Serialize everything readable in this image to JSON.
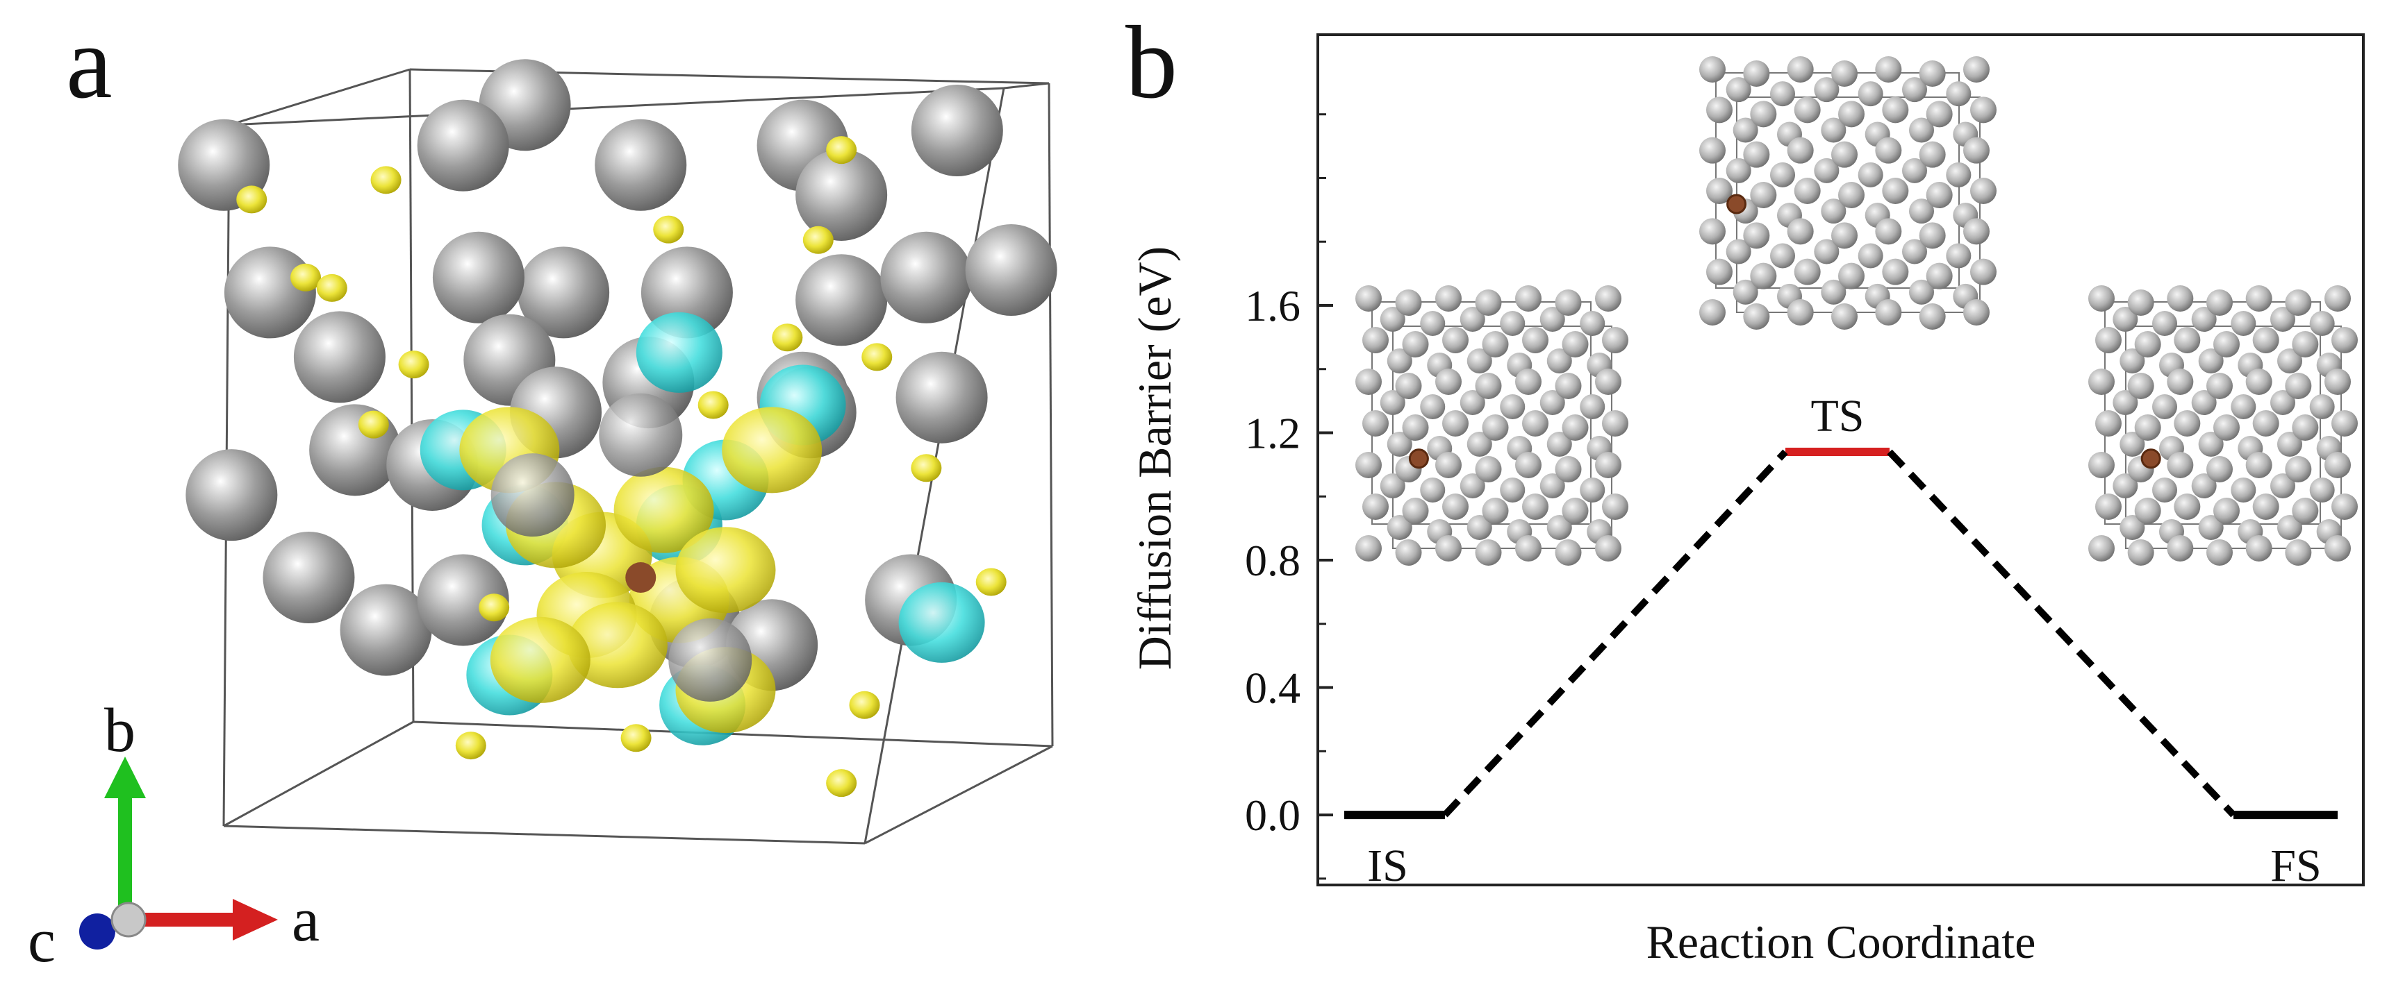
{
  "figure": {
    "panel_a_letter": "a",
    "panel_b_letter": "b",
    "axes_triad": {
      "b_label": "b",
      "a_label": "a",
      "c_label": "c",
      "b_color": "#1fc01f",
      "a_color": "#d42020",
      "c_color": "#1020a0"
    },
    "atom_colors": {
      "host_atom": "#9a9a9a",
      "isosurface_positive": "#e8e000",
      "isosurface_negative": "#30d8d8",
      "solute_atom": "#8a4a2a"
    }
  },
  "chart_data": {
    "type": "line",
    "title": "",
    "xlabel": "Reaction Coordinate",
    "ylabel": "Diffusion Barrier (eV)",
    "ylim": [
      -0.22,
      2.45
    ],
    "yticks": [
      "0.0",
      "0.4",
      "0.8",
      "1.2",
      "1.6"
    ],
    "ytick_values": [
      0.0,
      0.4,
      0.8,
      1.2,
      1.6
    ],
    "states": [
      {
        "name": "IS",
        "x": 0,
        "energy": 0.0,
        "color": "#000000"
      },
      {
        "name": "TS",
        "x": 1,
        "energy": 1.14,
        "color": "#d62020"
      },
      {
        "name": "FS",
        "x": 2,
        "energy": 0.0,
        "color": "#000000"
      }
    ],
    "grid": false,
    "legend": "none"
  }
}
